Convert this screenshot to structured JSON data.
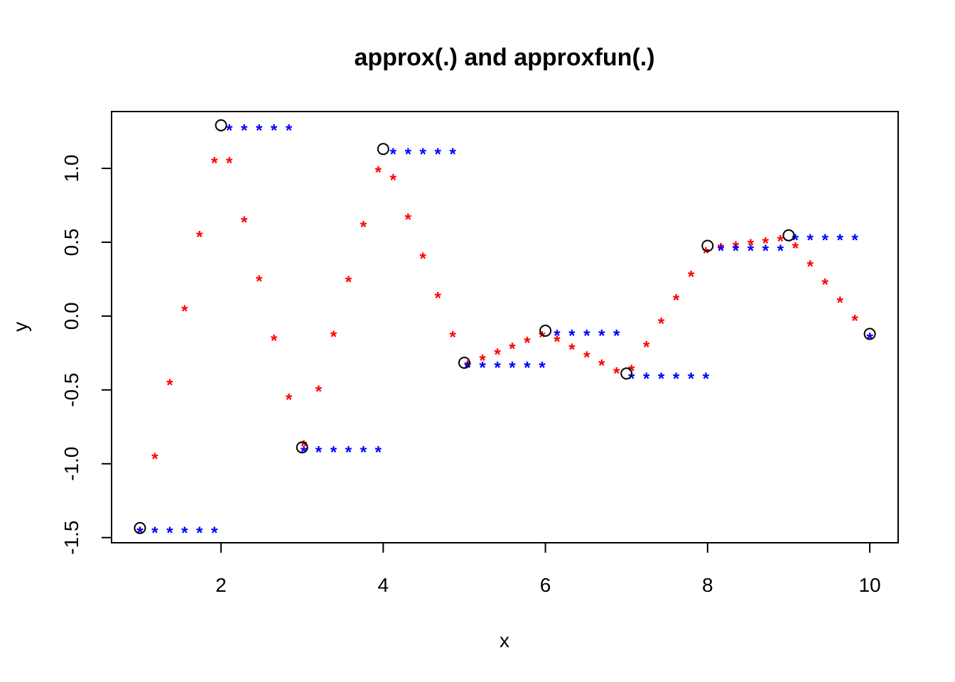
{
  "chart_data": {
    "type": "scatter",
    "title": "approx(.) and approxfun(.)",
    "xlabel": "x",
    "ylabel": "y",
    "xlim": [
      0.65,
      10.35
    ],
    "ylim": [
      -1.535,
      1.385
    ],
    "x_ticks": [
      2,
      4,
      6,
      8,
      10
    ],
    "x_tick_labels": [
      "2",
      "4",
      "6",
      "8",
      "10"
    ],
    "y_ticks": [
      -1.5,
      -1.0,
      -0.5,
      0.0,
      0.5,
      1.0
    ],
    "y_tick_labels": [
      "-1.5",
      "-1.0",
      "-0.5",
      "0.0",
      "0.5",
      "1.0"
    ],
    "grid": false,
    "series": [
      {
        "marker": "circle",
        "color": "#000000",
        "x": [
          1,
          2,
          3,
          4,
          5,
          6,
          7,
          8,
          9,
          10
        ],
        "y": [
          -1.435,
          1.292,
          -0.889,
          1.131,
          -0.316,
          -0.099,
          -0.389,
          0.476,
          0.547,
          -0.121
        ]
      },
      {
        "marker": "star",
        "color": "#ff0000",
        "method": "linear",
        "n": 50,
        "x_from": 1,
        "x_to": 10
      },
      {
        "marker": "star",
        "color": "#0000ff",
        "method": "constant",
        "n": 50,
        "x_from": 1,
        "x_to": 10
      }
    ]
  }
}
